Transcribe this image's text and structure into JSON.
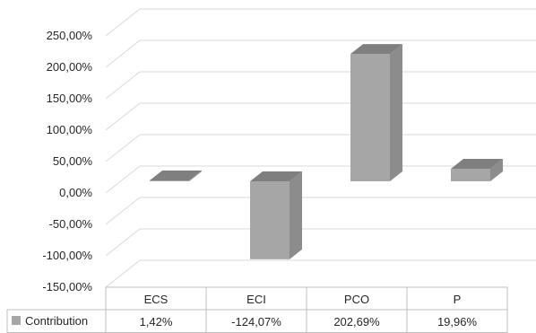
{
  "chart_data": {
    "type": "bar",
    "categories": [
      "ECS",
      "ECI",
      "PCO",
      "P"
    ],
    "series": [
      {
        "name": "Contribution",
        "values": [
          1.42,
          -124.07,
          202.69,
          19.96
        ],
        "value_labels": [
          "1,42%",
          "-124,07%",
          "202,69%",
          "19,96%"
        ]
      }
    ],
    "y_ticks": [
      "250,00%",
      "200,00%",
      "150,00%",
      "100,00%",
      "50,00%",
      "0,00%",
      "-50,00%",
      "-100,00%",
      "-150,00%"
    ],
    "ylim": [
      -150,
      250
    ],
    "grid": true,
    "three_d": true,
    "data_table": true,
    "bar_color": "#a6a6a6",
    "bar_side_color": "#8c8c8c",
    "bar_top_color": "#7f7f7f",
    "gridline_color": "#d9d9d9"
  }
}
